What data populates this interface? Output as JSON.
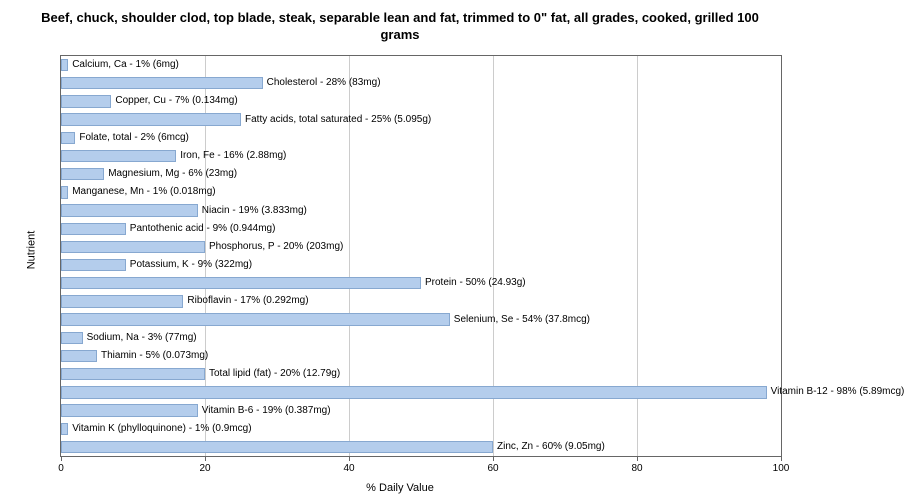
{
  "chart": {
    "type": "bar-horizontal",
    "title": "Beef, chuck, shoulder clod, top blade, steak, separable lean and fat, trimmed to 0\" fat, all grades, cooked, grilled 100 grams",
    "title_fontsize": 13,
    "x_label": "% Daily Value",
    "y_label": "Nutrient",
    "label_fontsize": 11,
    "xlim": [
      0,
      100
    ],
    "x_ticks": [
      0,
      20,
      40,
      60,
      80,
      100
    ],
    "bar_color": "#b4cdec",
    "bar_border_color": "#87a8d0",
    "grid_color": "#cccccc",
    "background_color": "#ffffff",
    "plot_border_color": "#666666",
    "bar_label_fontsize": 10,
    "tick_label_fontsize": 10,
    "nutrients": [
      {
        "label": "Calcium, Ca - 1% (6mg)",
        "pct": 1
      },
      {
        "label": "Cholesterol - 28% (83mg)",
        "pct": 28
      },
      {
        "label": "Copper, Cu - 7% (0.134mg)",
        "pct": 7
      },
      {
        "label": "Fatty acids, total saturated - 25% (5.095g)",
        "pct": 25
      },
      {
        "label": "Folate, total - 2% (6mcg)",
        "pct": 2
      },
      {
        "label": "Iron, Fe - 16% (2.88mg)",
        "pct": 16
      },
      {
        "label": "Magnesium, Mg - 6% (23mg)",
        "pct": 6
      },
      {
        "label": "Manganese, Mn - 1% (0.018mg)",
        "pct": 1
      },
      {
        "label": "Niacin - 19% (3.833mg)",
        "pct": 19
      },
      {
        "label": "Pantothenic acid - 9% (0.944mg)",
        "pct": 9
      },
      {
        "label": "Phosphorus, P - 20% (203mg)",
        "pct": 20
      },
      {
        "label": "Potassium, K - 9% (322mg)",
        "pct": 9
      },
      {
        "label": "Protein - 50% (24.93g)",
        "pct": 50
      },
      {
        "label": "Riboflavin - 17% (0.292mg)",
        "pct": 17
      },
      {
        "label": "Selenium, Se - 54% (37.8mcg)",
        "pct": 54
      },
      {
        "label": "Sodium, Na - 3% (77mg)",
        "pct": 3
      },
      {
        "label": "Thiamin - 5% (0.073mg)",
        "pct": 5
      },
      {
        "label": "Total lipid (fat) - 20% (12.79g)",
        "pct": 20
      },
      {
        "label": "Vitamin B-12 - 98% (5.89mcg)",
        "pct": 98
      },
      {
        "label": "Vitamin B-6 - 19% (0.387mg)",
        "pct": 19
      },
      {
        "label": "Vitamin K (phylloquinone) - 1% (0.9mcg)",
        "pct": 1
      },
      {
        "label": "Zinc, Zn - 60% (9.05mg)",
        "pct": 60
      }
    ]
  }
}
